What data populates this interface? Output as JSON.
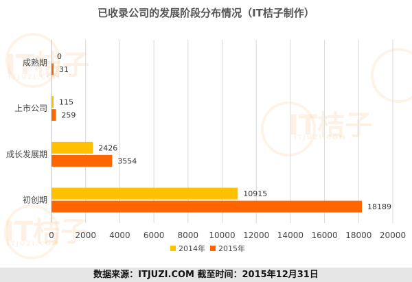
{
  "chart_data": {
    "type": "bar",
    "orientation": "horizontal",
    "title": "已收录公司的发展阶段分布情况（IT桔子制作）",
    "categories": [
      "成熟期",
      "上市公司",
      "成长发展期",
      "初创期"
    ],
    "series": [
      {
        "name": "2014年",
        "color": "#ffc000",
        "values": [
          0,
          115,
          2426,
          10915
        ]
      },
      {
        "name": "2015年",
        "color": "#ff6600",
        "values": [
          31,
          259,
          3554,
          18189
        ]
      }
    ],
    "xlim": [
      0,
      20000
    ],
    "xticks": [
      0,
      2000,
      4000,
      6000,
      8000,
      10000,
      12000,
      14000,
      16000,
      18000,
      20000
    ],
    "grid": true,
    "legend": "bottom"
  },
  "footer": {
    "text": "数据来源：ITJUZI.COM  截至时间：2015年12月31日"
  },
  "watermark": {
    "brand": "IT桔子",
    "sub": "ITJUZI.COM"
  }
}
